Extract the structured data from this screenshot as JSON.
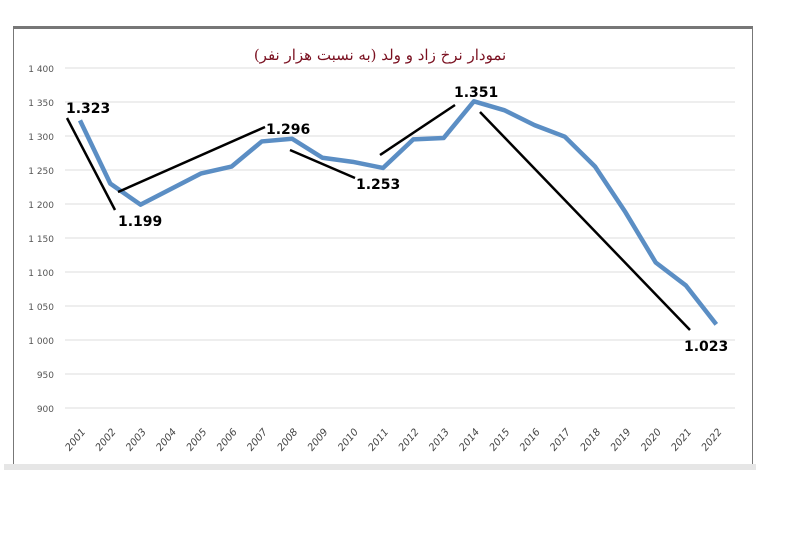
{
  "chart_data": {
    "type": "line",
    "title": "نمودار نرخ زاد و ولد (به نسبت هزار نفر)",
    "xlabel": "",
    "ylabel": "",
    "ylim": [
      900,
      1400
    ],
    "yticks": [
      900,
      950,
      1000,
      1050,
      1100,
      1150,
      1200,
      1250,
      1300,
      1350,
      1400
    ],
    "ytick_labels": [
      "900",
      "950",
      "1 000",
      "1 050",
      "1 100",
      "1 150",
      "1 200",
      "1 250",
      "1 300",
      "1 350",
      "1 400"
    ],
    "grid": true,
    "categories": [
      "2001",
      "2002",
      "2003",
      "2004",
      "2005",
      "2006",
      "2007",
      "2008",
      "2009",
      "2010",
      "2011",
      "2012",
      "2013",
      "2014",
      "2015",
      "2016",
      "2017",
      "2018",
      "2019",
      "2020",
      "2021",
      "2022"
    ],
    "series": [
      {
        "values": [
          1323,
          1230,
          1199,
          1222,
          1245,
          1255,
          1292,
          1296,
          1268,
          1262,
          1253,
          1295,
          1297,
          1351,
          1338,
          1316,
          1299,
          1255,
          1188,
          1114,
          1080,
          1023
        ],
        "color": "#5b8ec4"
      }
    ],
    "annotations": [
      {
        "text": "1.323",
        "category": "2001"
      },
      {
        "text": "1.199",
        "category": "2003"
      },
      {
        "text": "1.296",
        "category": "2008"
      },
      {
        "text": "1.253",
        "category": "2011"
      },
      {
        "text": "1.351",
        "category": "2014"
      },
      {
        "text": "1.023",
        "category": "2022"
      }
    ],
    "trend_lines_color": "#000000",
    "title_color": "#7a1020"
  }
}
